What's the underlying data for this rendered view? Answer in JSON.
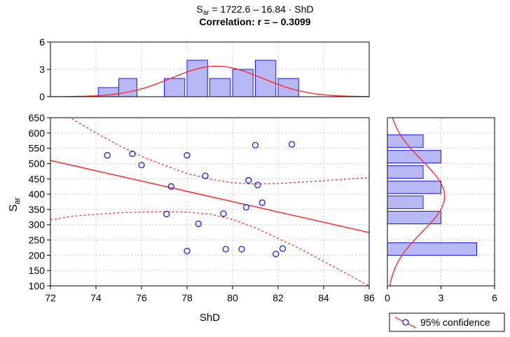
{
  "header": {
    "eq_lhs": "S",
    "eq_sub": "ar",
    "eq_rhs": " = 1722.6 – 16.84 · ShD",
    "correlation": "Correlation: r = – 0.3099"
  },
  "legend": {
    "label": "95% confidence"
  },
  "colors": {
    "fit": "#ff2a2a",
    "marker": "#1a1aff",
    "bar_fill": "#b8b8f4",
    "bar_edge": "#1a1aee",
    "grid": "#c8c8c8"
  },
  "chart_data": [
    {
      "type": "scatter",
      "xlabel": "ShD",
      "ylabel_main": "S",
      "ylabel_sub": "ar",
      "xlim": [
        72,
        86
      ],
      "ylim": [
        100,
        650
      ],
      "xticks": [
        72,
        74,
        76,
        78,
        80,
        82,
        84,
        86
      ],
      "yticks": [
        100,
        150,
        200,
        250,
        300,
        350,
        400,
        450,
        500,
        550,
        600,
        650
      ],
      "grid": true,
      "points": [
        {
          "x": 74.5,
          "y": 527
        },
        {
          "x": 75.6,
          "y": 532
        },
        {
          "x": 76.0,
          "y": 495
        },
        {
          "x": 77.1,
          "y": 335
        },
        {
          "x": 77.3,
          "y": 425
        },
        {
          "x": 78.0,
          "y": 527
        },
        {
          "x": 78.0,
          "y": 214
        },
        {
          "x": 78.5,
          "y": 303
        },
        {
          "x": 78.8,
          "y": 460
        },
        {
          "x": 79.6,
          "y": 336
        },
        {
          "x": 79.7,
          "y": 220
        },
        {
          "x": 80.4,
          "y": 220
        },
        {
          "x": 80.6,
          "y": 357
        },
        {
          "x": 80.7,
          "y": 445
        },
        {
          "x": 81.0,
          "y": 560
        },
        {
          "x": 81.1,
          "y": 430
        },
        {
          "x": 81.3,
          "y": 372
        },
        {
          "x": 81.9,
          "y": 204
        },
        {
          "x": 82.2,
          "y": 222
        },
        {
          "x": 82.6,
          "y": 563
        }
      ],
      "fit": {
        "intercept": 1722.6,
        "slope": -16.84
      },
      "confidence_band": {
        "x": [
          72,
          73,
          74,
          75,
          76,
          77,
          78,
          79,
          80,
          81,
          82,
          83,
          84,
          85,
          86
        ],
        "upper": [
          690,
          644,
          600,
          560,
          524,
          494,
          468,
          449,
          437,
          433,
          435,
          439,
          444,
          449,
          454
        ],
        "lower": [
          316,
          328,
          334,
          339,
          341,
          343,
          341,
          335,
          317,
          290,
          255,
          220,
          180,
          140,
          100
        ]
      },
      "legend": "95% confidence"
    },
    {
      "type": "bar",
      "orientation": "vertical",
      "axis": "ShD",
      "xlim": [
        72,
        86
      ],
      "ylim": [
        0,
        6
      ],
      "yticks": [
        0,
        3,
        6
      ],
      "grid": true,
      "bins": [
        {
          "from": 74.1,
          "to": 75.0,
          "count": 1
        },
        {
          "from": 75.0,
          "to": 75.8,
          "count": 2
        },
        {
          "from": 77.0,
          "to": 77.9,
          "count": 2
        },
        {
          "from": 78.0,
          "to": 78.9,
          "count": 4
        },
        {
          "from": 79.0,
          "to": 79.9,
          "count": 2
        },
        {
          "from": 80.0,
          "to": 80.9,
          "count": 3
        },
        {
          "from": 81.0,
          "to": 81.9,
          "count": 4
        },
        {
          "from": 82.0,
          "to": 82.9,
          "count": 2
        }
      ],
      "curve": {
        "type": "normal",
        "mean": 79.3,
        "sd": 2.0,
        "peak": 3.35
      }
    },
    {
      "type": "bar",
      "orientation": "horizontal",
      "axis": "Sar",
      "ylim": [
        100,
        650
      ],
      "xlim": [
        0,
        6
      ],
      "xticks": [
        0,
        3,
        6
      ],
      "grid": true,
      "bins": [
        {
          "from": 553,
          "to": 594,
          "count": 2
        },
        {
          "from": 502,
          "to": 543,
          "count": 3
        },
        {
          "from": 452,
          "to": 493,
          "count": 2
        },
        {
          "from": 402,
          "to": 443,
          "count": 3
        },
        {
          "from": 353,
          "to": 394,
          "count": 2
        },
        {
          "from": 303,
          "to": 344,
          "count": 3
        },
        {
          "from": 200,
          "to": 241,
          "count": 5
        }
      ],
      "curve": {
        "type": "normal",
        "mean": 393,
        "sd": 117,
        "peak": 3.2
      }
    }
  ]
}
